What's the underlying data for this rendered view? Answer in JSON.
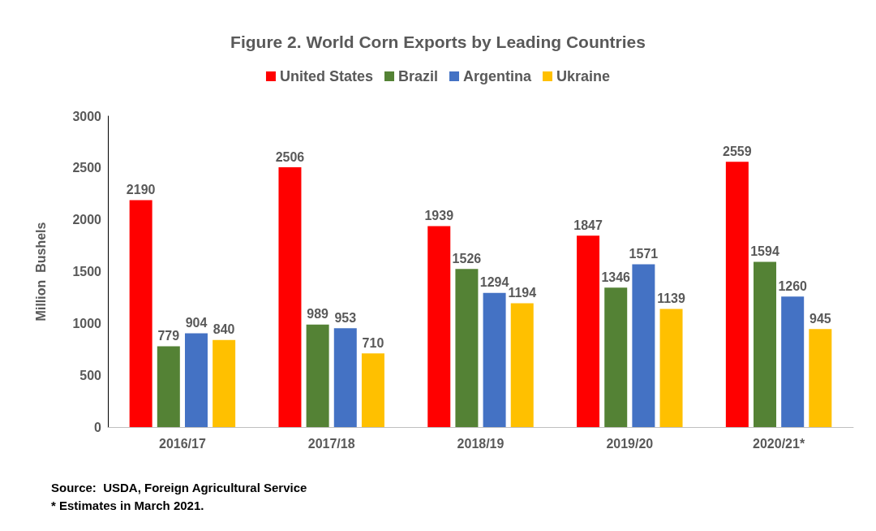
{
  "chart_data": {
    "type": "bar",
    "title": "Figure 2. World Corn Exports by Leading Countries",
    "ylabel": "Million  Bushels",
    "categories": [
      "2016/17",
      "2017/18",
      "2018/19",
      "2019/20",
      "2020/21*"
    ],
    "series": [
      {
        "name": "United States",
        "color": "#ff0000",
        "values": [
          2190,
          2506,
          1939,
          1847,
          2559
        ]
      },
      {
        "name": "Brazil",
        "color": "#548235",
        "values": [
          779,
          989,
          1526,
          1346,
          1594
        ]
      },
      {
        "name": "Argentina",
        "color": "#4472c4",
        "values": [
          904,
          953,
          1294,
          1571,
          1260
        ]
      },
      {
        "name": "Ukraine",
        "color": "#ffc000",
        "values": [
          840,
          710,
          1194,
          1139,
          945
        ]
      }
    ],
    "ylim": [
      0,
      3000
    ],
    "yticks": [
      0,
      500,
      1000,
      1500,
      2000,
      2500,
      3000
    ],
    "grid": false,
    "legend": "top",
    "data_labels": true,
    "annotations": [
      "Source:  USDA, Foreign Agricultural Service",
      "* Estimates in March 2021."
    ]
  }
}
